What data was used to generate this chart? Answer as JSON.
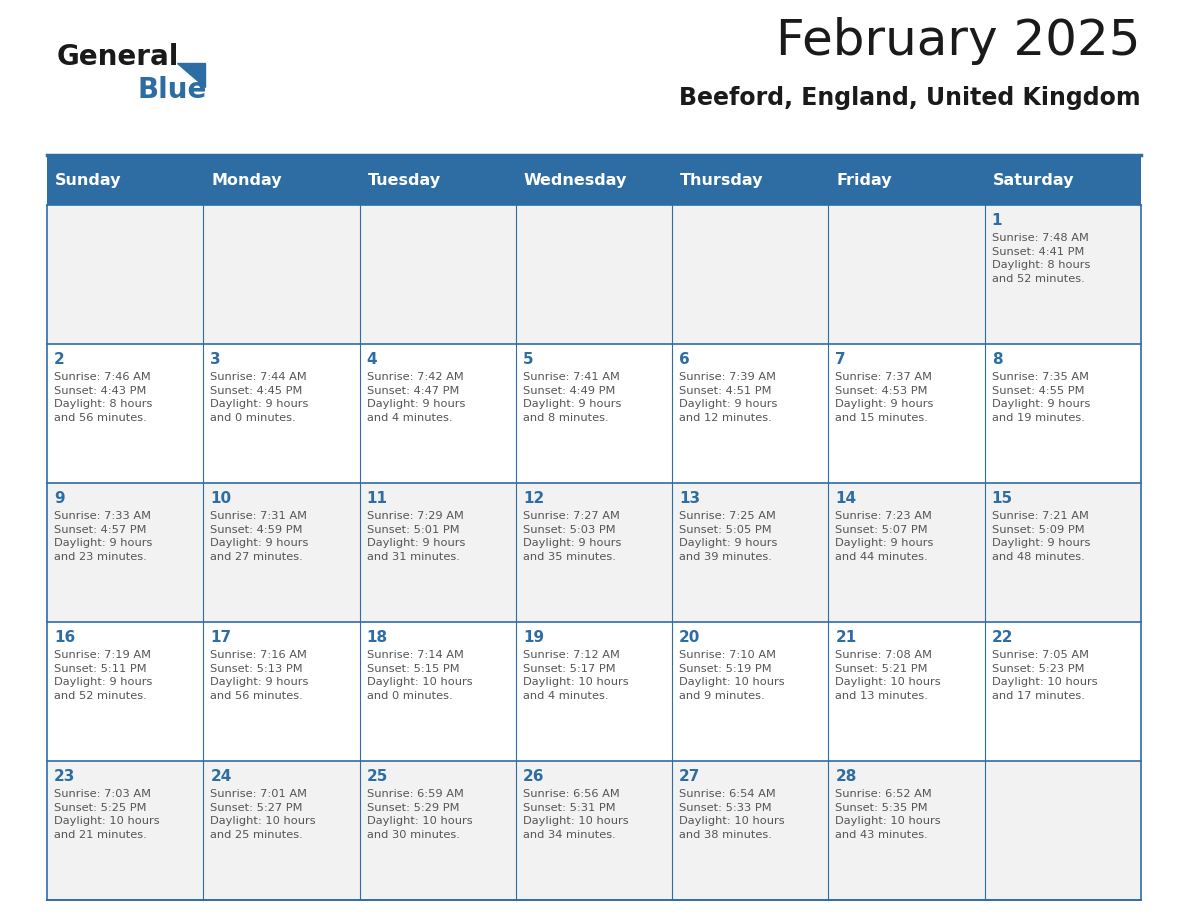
{
  "title": "February 2025",
  "subtitle": "Beeford, England, United Kingdom",
  "header_bg": "#2E6DA4",
  "header_text_color": "#FFFFFF",
  "row_bg_odd": "#F2F2F2",
  "row_bg_even": "#FFFFFF",
  "day_number_color": "#2E6DA4",
  "text_color": "#555555",
  "line_color": "#2E6DA4",
  "days_of_week": [
    "Sunday",
    "Monday",
    "Tuesday",
    "Wednesday",
    "Thursday",
    "Friday",
    "Saturday"
  ],
  "weeks": [
    [
      {
        "day": null,
        "info": null
      },
      {
        "day": null,
        "info": null
      },
      {
        "day": null,
        "info": null
      },
      {
        "day": null,
        "info": null
      },
      {
        "day": null,
        "info": null
      },
      {
        "day": null,
        "info": null
      },
      {
        "day": "1",
        "info": "Sunrise: 7:48 AM\nSunset: 4:41 PM\nDaylight: 8 hours\nand 52 minutes."
      }
    ],
    [
      {
        "day": "2",
        "info": "Sunrise: 7:46 AM\nSunset: 4:43 PM\nDaylight: 8 hours\nand 56 minutes."
      },
      {
        "day": "3",
        "info": "Sunrise: 7:44 AM\nSunset: 4:45 PM\nDaylight: 9 hours\nand 0 minutes."
      },
      {
        "day": "4",
        "info": "Sunrise: 7:42 AM\nSunset: 4:47 PM\nDaylight: 9 hours\nand 4 minutes."
      },
      {
        "day": "5",
        "info": "Sunrise: 7:41 AM\nSunset: 4:49 PM\nDaylight: 9 hours\nand 8 minutes."
      },
      {
        "day": "6",
        "info": "Sunrise: 7:39 AM\nSunset: 4:51 PM\nDaylight: 9 hours\nand 12 minutes."
      },
      {
        "day": "7",
        "info": "Sunrise: 7:37 AM\nSunset: 4:53 PM\nDaylight: 9 hours\nand 15 minutes."
      },
      {
        "day": "8",
        "info": "Sunrise: 7:35 AM\nSunset: 4:55 PM\nDaylight: 9 hours\nand 19 minutes."
      }
    ],
    [
      {
        "day": "9",
        "info": "Sunrise: 7:33 AM\nSunset: 4:57 PM\nDaylight: 9 hours\nand 23 minutes."
      },
      {
        "day": "10",
        "info": "Sunrise: 7:31 AM\nSunset: 4:59 PM\nDaylight: 9 hours\nand 27 minutes."
      },
      {
        "day": "11",
        "info": "Sunrise: 7:29 AM\nSunset: 5:01 PM\nDaylight: 9 hours\nand 31 minutes."
      },
      {
        "day": "12",
        "info": "Sunrise: 7:27 AM\nSunset: 5:03 PM\nDaylight: 9 hours\nand 35 minutes."
      },
      {
        "day": "13",
        "info": "Sunrise: 7:25 AM\nSunset: 5:05 PM\nDaylight: 9 hours\nand 39 minutes."
      },
      {
        "day": "14",
        "info": "Sunrise: 7:23 AM\nSunset: 5:07 PM\nDaylight: 9 hours\nand 44 minutes."
      },
      {
        "day": "15",
        "info": "Sunrise: 7:21 AM\nSunset: 5:09 PM\nDaylight: 9 hours\nand 48 minutes."
      }
    ],
    [
      {
        "day": "16",
        "info": "Sunrise: 7:19 AM\nSunset: 5:11 PM\nDaylight: 9 hours\nand 52 minutes."
      },
      {
        "day": "17",
        "info": "Sunrise: 7:16 AM\nSunset: 5:13 PM\nDaylight: 9 hours\nand 56 minutes."
      },
      {
        "day": "18",
        "info": "Sunrise: 7:14 AM\nSunset: 5:15 PM\nDaylight: 10 hours\nand 0 minutes."
      },
      {
        "day": "19",
        "info": "Sunrise: 7:12 AM\nSunset: 5:17 PM\nDaylight: 10 hours\nand 4 minutes."
      },
      {
        "day": "20",
        "info": "Sunrise: 7:10 AM\nSunset: 5:19 PM\nDaylight: 10 hours\nand 9 minutes."
      },
      {
        "day": "21",
        "info": "Sunrise: 7:08 AM\nSunset: 5:21 PM\nDaylight: 10 hours\nand 13 minutes."
      },
      {
        "day": "22",
        "info": "Sunrise: 7:05 AM\nSunset: 5:23 PM\nDaylight: 10 hours\nand 17 minutes."
      }
    ],
    [
      {
        "day": "23",
        "info": "Sunrise: 7:03 AM\nSunset: 5:25 PM\nDaylight: 10 hours\nand 21 minutes."
      },
      {
        "day": "24",
        "info": "Sunrise: 7:01 AM\nSunset: 5:27 PM\nDaylight: 10 hours\nand 25 minutes."
      },
      {
        "day": "25",
        "info": "Sunrise: 6:59 AM\nSunset: 5:29 PM\nDaylight: 10 hours\nand 30 minutes."
      },
      {
        "day": "26",
        "info": "Sunrise: 6:56 AM\nSunset: 5:31 PM\nDaylight: 10 hours\nand 34 minutes."
      },
      {
        "day": "27",
        "info": "Sunrise: 6:54 AM\nSunset: 5:33 PM\nDaylight: 10 hours\nand 38 minutes."
      },
      {
        "day": "28",
        "info": "Sunrise: 6:52 AM\nSunset: 5:35 PM\nDaylight: 10 hours\nand 43 minutes."
      },
      {
        "day": null,
        "info": null
      }
    ]
  ],
  "figsize": [
    11.88,
    9.18
  ],
  "dpi": 100
}
